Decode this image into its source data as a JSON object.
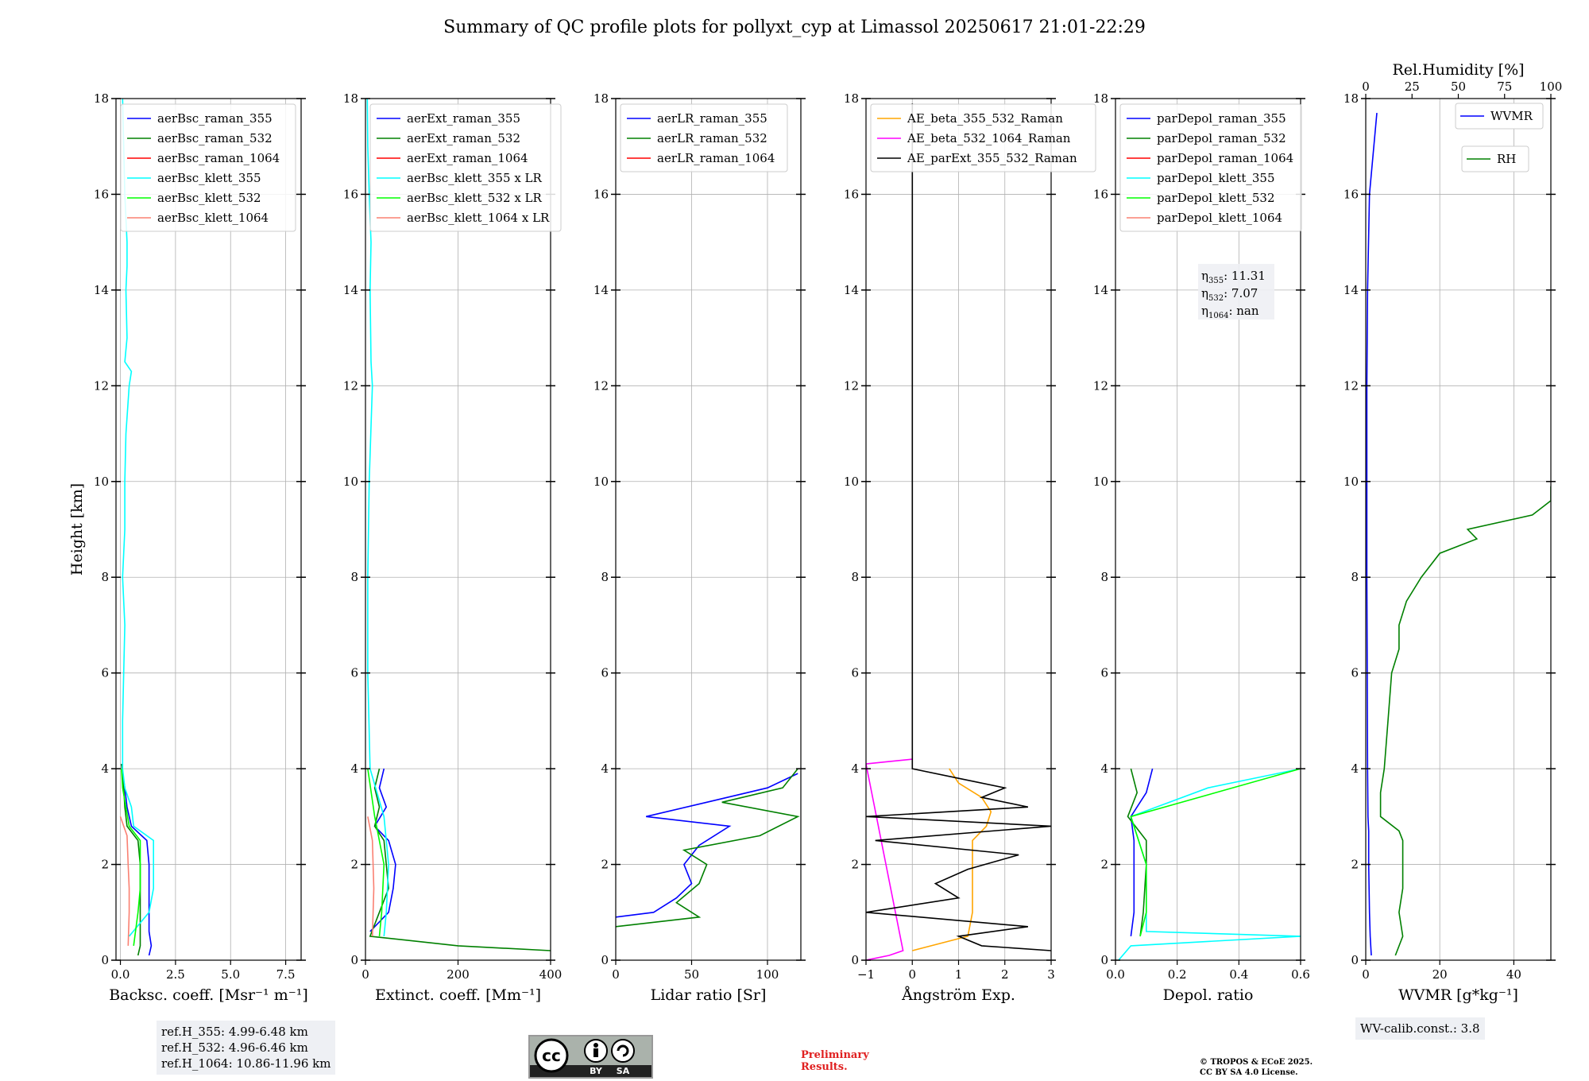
{
  "title": "Summary of QC profile plots for pollyxt_cyp at Limassol 20250617 21:01-22:29",
  "y_label": "Height [km]",
  "ref_heights": [
    "ref.H_355: 4.99-6.48 km",
    "ref.H_532: 4.96-6.46 km",
    "ref.H_1064: 10.86-11.96 km"
  ],
  "wv_calib": "WV-calib.const.: 3.8",
  "prelim": [
    "Preliminary",
    "Results."
  ],
  "copyright": [
    "© TROPOS & ECoE 2025.",
    "CC BY SA 4.0 License."
  ],
  "license_badge": [
    "BY",
    "SA"
  ],
  "colors": {
    "blue": "#0000ff",
    "green": "#008000",
    "red": "#ff0000",
    "cyan": "#00ffff",
    "lime": "#00ff00",
    "salmon": "#fa8072",
    "orange": "#ffa500",
    "magenta": "#ff00ff",
    "black": "#000000"
  },
  "chart_data": [
    {
      "type": "line",
      "id": "bsc",
      "xlabel": "Backsc. coeff. [Msr⁻¹ m⁻¹]",
      "xlim": [
        -0.2,
        8.2
      ],
      "xticks": [
        0,
        2.5,
        5.0,
        7.5
      ],
      "xticklabels": [
        "0.0",
        "2.5",
        "5.0",
        "7.5"
      ],
      "ylim": [
        0,
        18
      ],
      "yticks": [
        0,
        2,
        4,
        6,
        8,
        10,
        12,
        14,
        16,
        18
      ],
      "grid": true,
      "legend": "top-left",
      "series": [
        {
          "name": "aerBsc_raman_355",
          "color": "blue",
          "y": [
            0.1,
            0.3,
            0.6,
            1.0,
            1.5,
            2.0,
            2.5,
            2.8,
            3.2,
            3.6,
            3.9,
            4.1
          ],
          "x": [
            1.3,
            1.4,
            1.3,
            1.3,
            1.3,
            1.3,
            1.2,
            0.5,
            0.3,
            0.2,
            0.1,
            0.05
          ]
        },
        {
          "name": "aerBsc_raman_532",
          "color": "green",
          "y": [
            0.1,
            0.3,
            0.6,
            1.0,
            1.5,
            2.0,
            2.5,
            2.8,
            3.2,
            3.6,
            3.9,
            4.1
          ],
          "x": [
            0.8,
            0.9,
            0.9,
            0.9,
            0.9,
            0.9,
            0.8,
            0.3,
            0.2,
            0.15,
            0.1,
            0.05
          ]
        },
        {
          "name": "aerBsc_raman_1064",
          "color": "red",
          "y": [],
          "x": []
        },
        {
          "name": "aerBsc_klett_355",
          "color": "cyan",
          "y": [
            0.5,
            1.0,
            1.5,
            2.0,
            2.5,
            2.8,
            3.2,
            3.6,
            4.0,
            5,
            6,
            7,
            8,
            9,
            10,
            11,
            12,
            12.3,
            12.5,
            13,
            14,
            14.5,
            15,
            16,
            17,
            18
          ],
          "x": [
            0.4,
            1.3,
            1.5,
            1.5,
            1.5,
            0.6,
            0.5,
            0.2,
            0.1,
            0.1,
            0.15,
            0.2,
            0.1,
            0.2,
            0.2,
            0.25,
            0.4,
            0.5,
            0.2,
            0.3,
            0.25,
            0.3,
            0.3,
            0.2,
            0.15,
            0.1
          ]
        },
        {
          "name": "aerBsc_klett_532",
          "color": "lime",
          "y": [
            0.3,
            1.0,
            1.5,
            2.0,
            2.5,
            2.8,
            3.2,
            3.6,
            4.0
          ],
          "x": [
            0.6,
            0.8,
            0.9,
            0.9,
            0.9,
            0.4,
            0.25,
            0.1,
            0.05
          ]
        },
        {
          "name": "aerBsc_klett_1064",
          "color": "salmon",
          "y": [
            0.3,
            1.0,
            1.5,
            2.0,
            2.6,
            3.0
          ],
          "x": [
            0.35,
            0.4,
            0.4,
            0.35,
            0.3,
            0.0
          ]
        }
      ]
    },
    {
      "type": "line",
      "id": "ext",
      "xlabel": "Extinct. coeff. [Mm⁻¹]",
      "xlim": [
        0,
        400
      ],
      "xticks": [
        0,
        200,
        400
      ],
      "xticklabels": [
        "0",
        "200",
        "400"
      ],
      "ylim": [
        0,
        18
      ],
      "yticks": [
        0,
        2,
        4,
        6,
        8,
        10,
        12,
        14,
        16,
        18
      ],
      "grid": true,
      "legend": "top-left",
      "series": [
        {
          "name": "aerExt_raman_355",
          "color": "blue",
          "y": [
            0.6,
            1.0,
            1.5,
            2.0,
            2.5,
            2.8,
            3.2,
            3.6,
            4.0
          ],
          "x": [
            10,
            50,
            60,
            65,
            50,
            20,
            45,
            30,
            40
          ]
        },
        {
          "name": "aerExt_raman_532",
          "color": "green",
          "y": [
            0.2,
            0.3,
            0.5,
            1.0,
            1.5,
            2.0,
            2.5,
            2.8,
            3.2,
            3.6,
            4.0
          ],
          "x": [
            400,
            200,
            10,
            30,
            50,
            45,
            40,
            20,
            30,
            20,
            30
          ]
        },
        {
          "name": "aerExt_raman_1064",
          "color": "red",
          "y": [],
          "x": []
        },
        {
          "name": "aerBsc_klett_355 x LR",
          "color": "cyan",
          "y": [
            0.5,
            1.0,
            2.0,
            3.0,
            4.0,
            6,
            8,
            10,
            12,
            12.5,
            14,
            15,
            16,
            17,
            18
          ],
          "x": [
            40,
            45,
            50,
            40,
            10,
            5,
            5,
            8,
            15,
            12,
            10,
            12,
            8,
            5,
            4
          ]
        },
        {
          "name": "aerBsc_klett_532 x LR",
          "color": "lime",
          "y": [
            0.5,
            1.0,
            2.0,
            3.0,
            4.0
          ],
          "x": [
            30,
            35,
            40,
            20,
            5
          ]
        },
        {
          "name": "aerBsc_klett_1064 x LR",
          "color": "salmon",
          "y": [
            0.5,
            1.5,
            2.5,
            3.0
          ],
          "x": [
            15,
            18,
            15,
            5
          ]
        }
      ]
    },
    {
      "type": "line",
      "id": "lr",
      "xlabel": "Lidar ratio [Sr]",
      "xlim": [
        0,
        122
      ],
      "xticks": [
        0,
        50,
        100
      ],
      "xticklabels": [
        "0",
        "50",
        "100"
      ],
      "ylim": [
        0,
        18
      ],
      "yticks": [
        0,
        2,
        4,
        6,
        8,
        10,
        12,
        14,
        16,
        18
      ],
      "grid": true,
      "legend": "top-left",
      "series": [
        {
          "name": "aerLR_raman_355",
          "color": "blue",
          "y": [
            0.9,
            1.0,
            1.3,
            1.6,
            2.0,
            2.4,
            2.8,
            3.0,
            3.3,
            3.6,
            3.9
          ],
          "x": [
            0,
            25,
            40,
            50,
            45,
            55,
            75,
            20,
            60,
            100,
            120
          ]
        },
        {
          "name": "aerLR_raman_532",
          "color": "green",
          "y": [
            0.7,
            0.9,
            1.2,
            1.6,
            2.0,
            2.3,
            2.6,
            3.0,
            3.3,
            3.6,
            4.0
          ],
          "x": [
            0,
            55,
            40,
            55,
            60,
            45,
            95,
            120,
            70,
            110,
            120
          ]
        },
        {
          "name": "aerLR_raman_1064",
          "color": "red",
          "y": [],
          "x": []
        }
      ]
    },
    {
      "type": "line",
      "id": "ae",
      "xlabel": "Ångström Exp.",
      "xlim": [
        -1,
        3
      ],
      "xticks": [
        -1,
        0,
        1,
        2,
        3
      ],
      "xticklabels": [
        "−1",
        "0",
        "1",
        "2",
        "3"
      ],
      "ylim": [
        0,
        18
      ],
      "yticks": [
        0,
        2,
        4,
        6,
        8,
        10,
        12,
        14,
        16,
        18
      ],
      "grid": true,
      "legend": "top-left",
      "series": [
        {
          "name": "AE_beta_355_532_Raman",
          "color": "orange",
          "y": [
            0.2,
            0.5,
            1.0,
            1.5,
            2.0,
            2.5,
            2.8,
            3.1,
            3.4,
            3.7,
            4.0
          ],
          "x": [
            0,
            1.2,
            1.3,
            1.3,
            1.3,
            1.3,
            1.6,
            1.7,
            1.5,
            1.0,
            0.8
          ]
        },
        {
          "name": "AE_beta_532_1064_Raman",
          "color": "magenta",
          "y": [
            0.0,
            0.1,
            0.2,
            4.1,
            4.15,
            4.2
          ],
          "x": [
            -1,
            -0.5,
            -0.2,
            -1,
            -0.5,
            0
          ]
        },
        {
          "name": "AE_parExt_355_532_Raman",
          "color": "black",
          "y": [
            0.2,
            0.3,
            0.5,
            0.7,
            1.0,
            1.3,
            1.6,
            1.9,
            2.2,
            2.5,
            2.8,
            3.0,
            3.2,
            3.4,
            3.6,
            3.8,
            4.0,
            4.5,
            6,
            10,
            14,
            16,
            17.9
          ],
          "x": [
            3,
            1.5,
            1.0,
            2.5,
            -1,
            1.0,
            0.5,
            1.2,
            2.3,
            -0.8,
            3,
            -1,
            2.5,
            1.5,
            2.0,
            1.0,
            0,
            0,
            0,
            0,
            0,
            0,
            0
          ]
        }
      ]
    },
    {
      "type": "line",
      "id": "depol",
      "xlabel": "Depol. ratio",
      "xlim": [
        0,
        0.6
      ],
      "xticks": [
        0,
        0.2,
        0.4,
        0.6
      ],
      "xticklabels": [
        "0.0",
        "0.2",
        "0.4",
        "0.6"
      ],
      "ylim": [
        0,
        18
      ],
      "yticks": [
        0,
        2,
        4,
        6,
        8,
        10,
        12,
        14,
        16,
        18
      ],
      "grid": true,
      "legend": "top-left",
      "annotations": [
        {
          "label": "η",
          "sub": "355",
          "value": ": 11.31"
        },
        {
          "label": "η",
          "sub": "532",
          "value": ": 7.07"
        },
        {
          "label": "η",
          "sub": "1064",
          "value": ": nan"
        }
      ],
      "series": [
        {
          "name": "parDepol_raman_355",
          "color": "blue",
          "y": [
            0.5,
            1.0,
            2.0,
            2.5,
            3.0,
            3.5,
            4.0
          ],
          "x": [
            0.05,
            0.06,
            0.06,
            0.06,
            0.05,
            0.1,
            0.12
          ]
        },
        {
          "name": "parDepol_raman_532",
          "color": "green",
          "y": [
            0.5,
            1.0,
            2.0,
            2.5,
            3.0,
            3.5,
            4.0
          ],
          "x": [
            0.08,
            0.09,
            0.1,
            0.1,
            0.04,
            0.07,
            0.05
          ]
        },
        {
          "name": "parDepol_raman_1064",
          "color": "red",
          "y": [],
          "x": []
        },
        {
          "name": "parDepol_klett_355",
          "color": "cyan",
          "y": [
            0.0,
            0.3,
            0.5,
            0.6,
            1.0,
            2.0,
            3.0,
            3.6,
            4.0
          ],
          "x": [
            0.01,
            0.05,
            0.6,
            0.1,
            0.1,
            0.1,
            0.05,
            0.3,
            0.6
          ]
        },
        {
          "name": "parDepol_klett_532",
          "color": "lime",
          "y": [
            0.5,
            1.0,
            2.0,
            3.0,
            4.0
          ],
          "x": [
            0.08,
            0.1,
            0.1,
            0.05,
            0.6
          ]
        },
        {
          "name": "parDepol_klett_1064",
          "color": "salmon",
          "y": [],
          "x": []
        }
      ]
    },
    {
      "type": "line",
      "id": "wv",
      "xlabel": "WVMR [g*kg⁻¹]",
      "xlim": [
        0,
        50
      ],
      "xticks": [
        0,
        20,
        40
      ],
      "xticklabels": [
        "0",
        "20",
        "40"
      ],
      "x2label": "Rel.Humidity [%]",
      "x2lim": [
        0,
        100
      ],
      "x2ticks": [
        0,
        25,
        50,
        75,
        100
      ],
      "x2ticklabels": [
        "0",
        "25",
        "50",
        "75",
        "100"
      ],
      "ylim": [
        0,
        18
      ],
      "yticks": [
        0,
        2,
        4,
        6,
        8,
        10,
        12,
        14,
        16,
        18
      ],
      "grid": true,
      "legend": "top-right",
      "series": [
        {
          "name": "WVMR",
          "color": "blue",
          "y": [
            0.1,
            0.5,
            1.0,
            2.0,
            2.7,
            3.0,
            4.0,
            6,
            8,
            10,
            12,
            14,
            16,
            17.7
          ],
          "x": [
            1.5,
            1.2,
            1.0,
            0.8,
            0.8,
            0.6,
            0.5,
            0.4,
            0.3,
            0.3,
            0.3,
            0.5,
            1.0,
            3.0
          ]
        },
        {
          "name": "RH",
          "color": "green",
          "y": [
            0.1,
            0.5,
            1.0,
            1.5,
            2.0,
            2.5,
            2.7,
            3.0,
            3.5,
            4.0,
            5.0,
            6.0,
            6.5,
            7.0,
            7.5,
            8.0,
            8.5,
            8.8,
            9.0,
            9.3,
            9.6,
            9.9
          ],
          "x": [
            16,
            20,
            18,
            20,
            20,
            20,
            18,
            8,
            8,
            10,
            12,
            14,
            18,
            18,
            22,
            30,
            40,
            60,
            55,
            90,
            100,
            100
          ]
        }
      ]
    }
  ]
}
